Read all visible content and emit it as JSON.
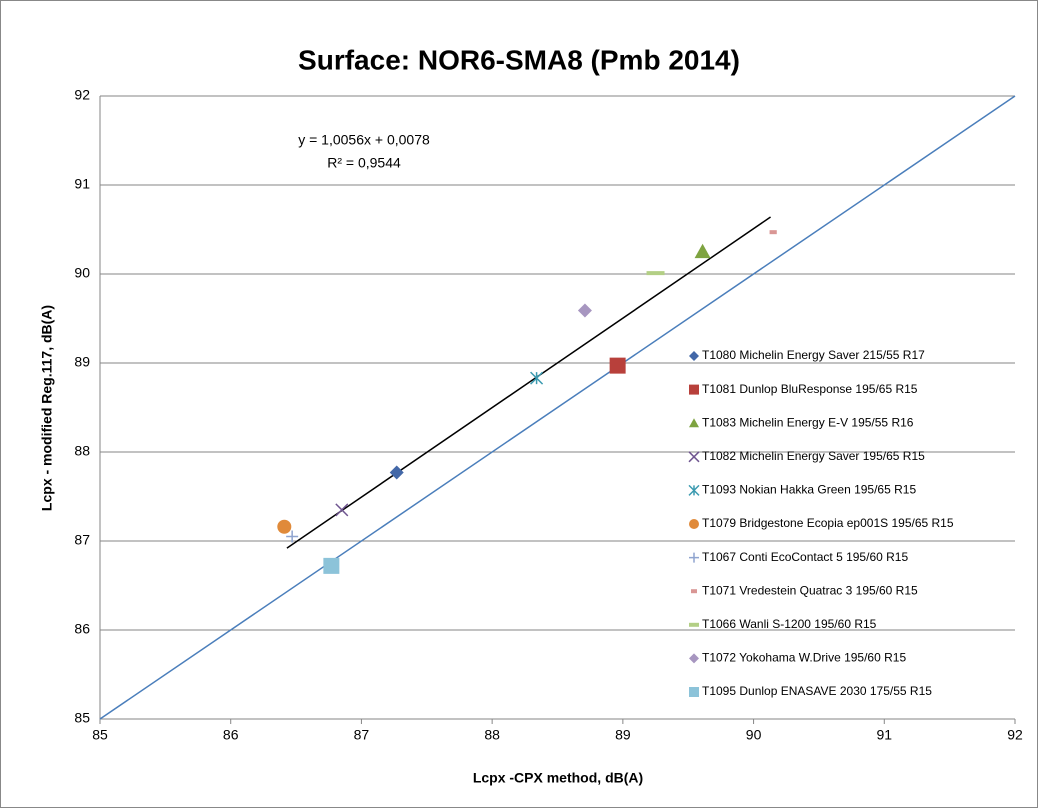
{
  "chart_data": {
    "type": "scatter",
    "title": "Surface: NOR6-SMA8 (Pmb 2014)",
    "x_label": "Lcpx -CPX method, dB(A)",
    "y_label": "Lcpx  - modified Reg.117, dB(A)",
    "xlim": [
      85,
      92
    ],
    "ylim": [
      85,
      92
    ],
    "xticks": [
      85,
      86,
      87,
      88,
      89,
      90,
      91,
      92
    ],
    "yticks": [
      85,
      86,
      87,
      88,
      89,
      90,
      91,
      92
    ],
    "grid": true,
    "annotations": [
      "y = 1,0056x + 0,0078",
      "R² = 0,9544"
    ],
    "lines": [
      {
        "x": [
          86.43,
          90.13
        ],
        "y": [
          86.92,
          90.64
        ],
        "color": "#000000"
      },
      {
        "x": [
          85,
          92
        ],
        "y": [
          85,
          92
        ],
        "color": "#4a7ebb"
      }
    ],
    "series": [
      {
        "name": "T1080  Michelin Energy Saver 215/55 R17",
        "color": "#4368a8",
        "marker": "diamond",
        "x": [
          87.27
        ],
        "values": [
          87.77
        ]
      },
      {
        "name": "T1081  Dunlop BluResponse 195/65 R15",
        "color": "#b8403b",
        "marker": "square",
        "x": [
          88.96
        ],
        "values": [
          88.97
        ]
      },
      {
        "name": "T1083  Michelin Energy E-V 195/55 R16",
        "color": "#7ea340",
        "marker": "triangle",
        "x": [
          89.61
        ],
        "values": [
          90.25
        ]
      },
      {
        "name": "T1082  Michelin Energy Saver 195/65 R15",
        "color": "#6f5590",
        "marker": "x",
        "x": [
          86.85
        ],
        "values": [
          87.35
        ]
      },
      {
        "name": "T1093  Nokian Hakka Green 195/65 R15",
        "color": "#3b9ab0",
        "marker": "star",
        "x": [
          88.34
        ],
        "values": [
          88.83
        ]
      },
      {
        "name": "T1079  Bridgestone Ecopia ep001S 195/65 R15",
        "color": "#e08a3a",
        "marker": "circle",
        "x": [
          86.41
        ],
        "values": [
          87.16
        ]
      },
      {
        "name": "T1067  Conti EcoContact 5 195/60 R15",
        "color": "#8fa4cf",
        "marker": "plus",
        "x": [
          86.47
        ],
        "values": [
          87.05
        ]
      },
      {
        "name": "T1071  Vredestein Quatrac 3 195/60 R15",
        "color": "#d99694",
        "marker": "dash",
        "x": [
          90.15
        ],
        "values": [
          90.47
        ]
      },
      {
        "name": "T1066  Wanli S-1200 195/60 R15",
        "color": "#b3cf85",
        "marker": "bar",
        "x": [
          89.25
        ],
        "values": [
          90.01
        ]
      },
      {
        "name": "T1072  Yokohama W.Drive 195/60 R15",
        "color": "#a796c0",
        "marker": "diamond",
        "x": [
          88.71
        ],
        "values": [
          89.59
        ]
      },
      {
        "name": "T1095  Dunlop ENASAVE 2030 175/55 R15",
        "color": "#8cc3d9",
        "marker": "square",
        "x": [
          86.77
        ],
        "values": [
          86.72
        ]
      }
    ]
  }
}
